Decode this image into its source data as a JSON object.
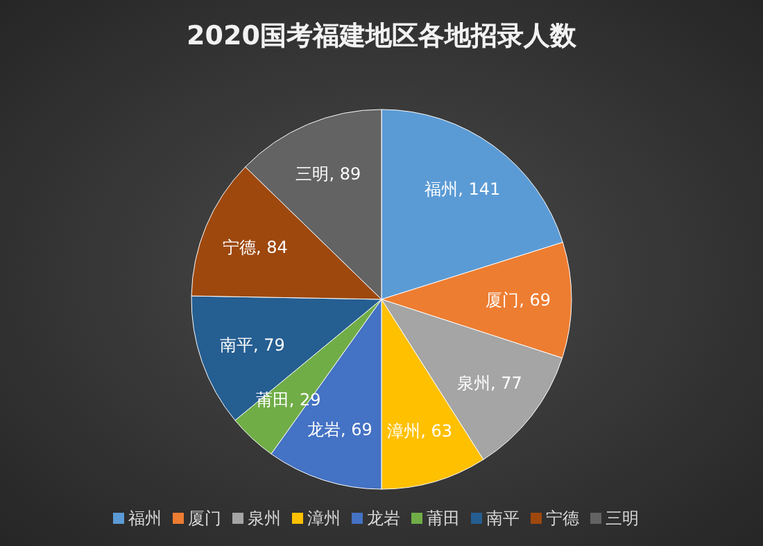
{
  "chart_data": {
    "type": "pie",
    "title": "2020国考福建地区各地招录人数",
    "categories": [
      "福州",
      "厦门",
      "泉州",
      "漳州",
      "龙岩",
      "莆田",
      "南平",
      "宁德",
      "三明"
    ],
    "values": [
      141,
      69,
      77,
      63,
      69,
      29,
      79,
      84,
      89
    ],
    "value_labels": [
      "福州, 141",
      "厦门, 69",
      "泉州, 77",
      "漳州, 63",
      "龙岩, 69",
      "莆田, 29",
      "南平, 79",
      "宁德, 84",
      "三明, 89"
    ],
    "colors": [
      "#5b9bd5",
      "#ed7d31",
      "#a5a5a5",
      "#ffc000",
      "#4472c4",
      "#70ad47",
      "#255e91",
      "#9e480e",
      "#636363"
    ],
    "legend": "bottom"
  }
}
